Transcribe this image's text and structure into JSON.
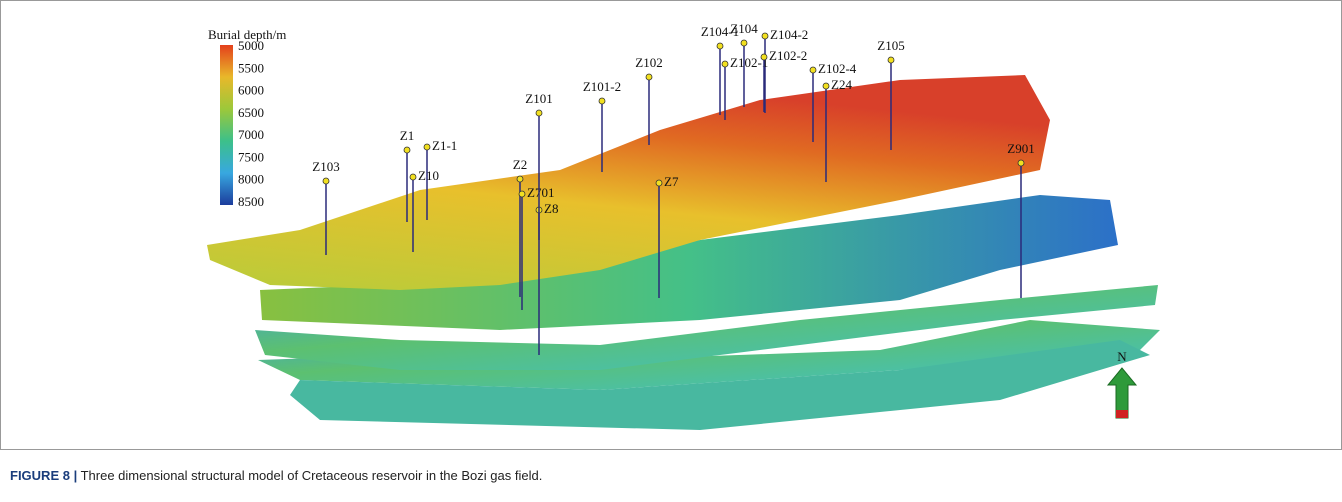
{
  "figure": {
    "colorbar": {
      "title": "Burial depth/m",
      "ticks": [
        5000,
        5500,
        6000,
        6500,
        7000,
        7500,
        8000,
        8500
      ]
    },
    "wells": [
      "Z103",
      "Z1",
      "Z1-1",
      "Z10",
      "Z2",
      "Z701",
      "Z8",
      "Z101",
      "Z101-2",
      "Z102",
      "Z7",
      "Z104-1",
      "Z104",
      "Z104-2",
      "Z102-1",
      "Z102-2",
      "Z102-4",
      "Z24",
      "Z105",
      "Z901"
    ],
    "north": "N"
  },
  "caption": {
    "label": "FIGURE 8 |",
    "text": "Three dimensional structural model of Cretaceous reservoir in the Bozi gas field."
  }
}
